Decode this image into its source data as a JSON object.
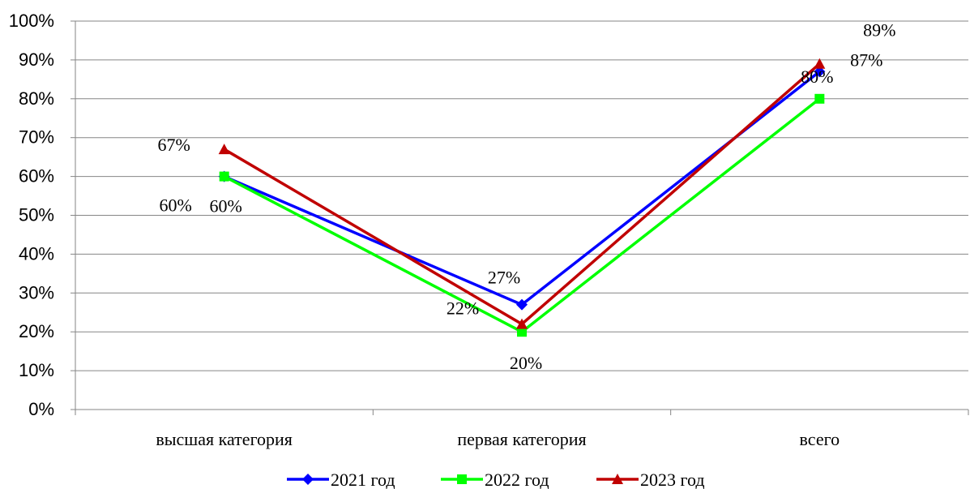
{
  "chart_data": {
    "type": "line",
    "categories": [
      "высшая категория",
      "первая категория",
      "всего"
    ],
    "ylim": [
      0,
      100
    ],
    "yticks": [
      "0%",
      "10%",
      "20%",
      "30%",
      "40%",
      "50%",
      "60%",
      "70%",
      "80%",
      "90%",
      "100%"
    ],
    "grid": true,
    "legend_position": "bottom",
    "series": [
      {
        "name": "2021 год",
        "values": [
          60,
          27,
          87
        ],
        "labels": [
          "60%",
          "27%",
          "87%"
        ],
        "color": "#0000FF",
        "marker": "diamond"
      },
      {
        "name": "2022 год",
        "values": [
          60,
          20,
          80
        ],
        "labels": [
          "60%",
          "20%",
          "80%"
        ],
        "color": "#00FF00",
        "marker": "square"
      },
      {
        "name": "2023 год",
        "values": [
          67,
          22,
          89
        ],
        "labels": [
          "67%",
          "22%",
          "89%"
        ],
        "color": "#C00000",
        "marker": "triangle"
      }
    ]
  }
}
